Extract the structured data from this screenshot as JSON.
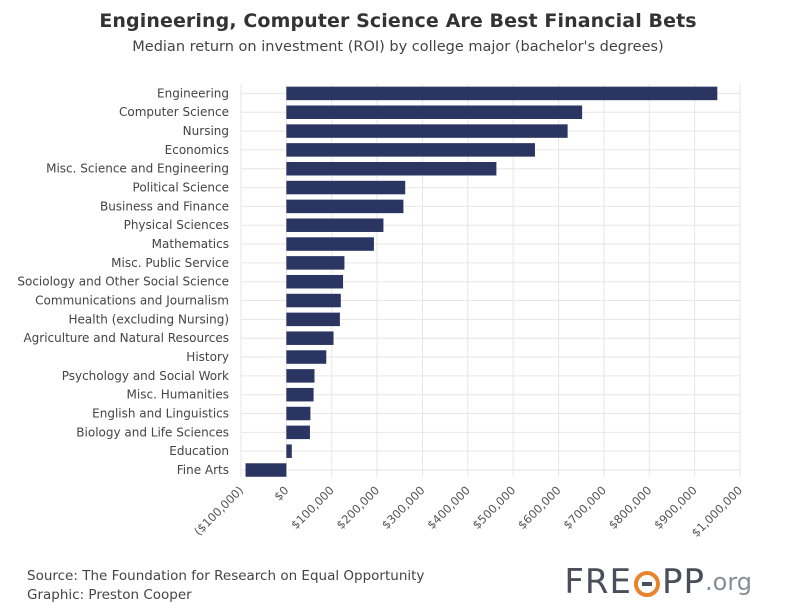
{
  "title": "Engineering, Computer Science Are Best Financial Bets",
  "subtitle": "Median return on investment (ROI) by college major (bachelor's degrees)",
  "colors": {
    "bar": "#2b3561",
    "grid": "#e6e6e6"
  },
  "chart_data": {
    "type": "bar",
    "orientation": "horizontal",
    "categories": [
      "Engineering",
      "Computer Science",
      "Nursing",
      "Economics",
      "Misc. Science and Engineering",
      "Political Science",
      "Business and Finance",
      "Physical Sciences",
      "Mathematics",
      "Misc. Public Service",
      "Sociology and Other Social Science",
      "Communications and Journalism",
      "Health (excluding Nursing)",
      "Agriculture and Natural Resources",
      "History",
      "Psychology and Social Work",
      "Misc. Humanities",
      "English and Linguistics",
      "Biology and Life Sciences",
      "Education",
      "Fine Arts"
    ],
    "values": [
      950000,
      652000,
      620000,
      548000,
      463000,
      262000,
      258000,
      214000,
      193000,
      128000,
      125000,
      120000,
      118000,
      104000,
      88000,
      62000,
      60000,
      53000,
      52000,
      12000,
      -90000
    ],
    "xlim": [
      -100000,
      1000000
    ],
    "xticks": [
      -100000,
      0,
      100000,
      200000,
      300000,
      400000,
      500000,
      600000,
      700000,
      800000,
      900000,
      1000000
    ],
    "xtick_labels": [
      "($100,000)",
      "$0",
      "$100,000",
      "$200,000",
      "$300,000",
      "$400,000",
      "$500,000",
      "$600,000",
      "$700,000",
      "$800,000",
      "$900,000",
      "$1,000,000"
    ],
    "grid": true,
    "legend": false
  },
  "footer": {
    "source": "Source: The Foundation for Research on Equal Opportunity",
    "graphic": "Graphic: Preston Cooper"
  },
  "logo": {
    "text_left": "FRE",
    "text_right": "PP",
    "suffix": ".org",
    "icon": "freopp-o-icon"
  }
}
